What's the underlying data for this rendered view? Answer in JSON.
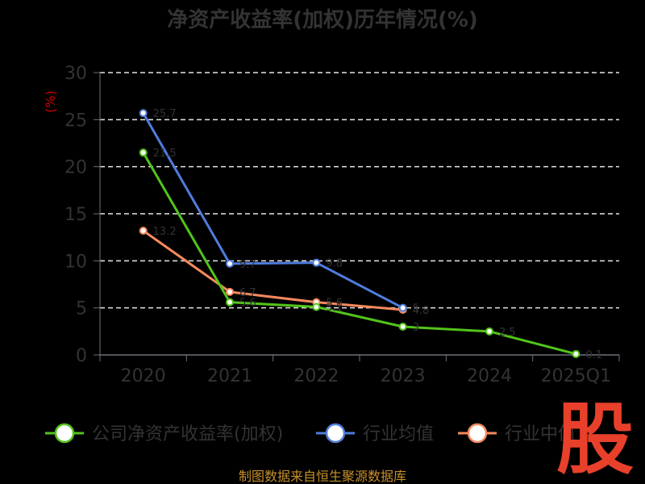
{
  "chart_data": {
    "type": "line",
    "title": "净资产收益率(加权)历年情况(%)",
    "ylabel": "(%)",
    "xlabel": "",
    "categories": [
      "2020",
      "2021",
      "2022",
      "2023",
      "2024",
      "2025Q1"
    ],
    "ylim": [
      0,
      30
    ],
    "yticks": [
      0,
      5,
      10,
      15,
      20,
      25,
      30
    ],
    "grid": "horizontal-dashed",
    "legend_position": "bottom",
    "series": [
      {
        "name": "公司净资产收益率(加权)",
        "color": "#52c41a",
        "values": [
          21.5,
          5.6,
          5.1,
          3.0,
          2.5,
          0.1
        ]
      },
      {
        "name": "行业均值",
        "color": "#4f7ddd",
        "values": [
          25.7,
          9.7,
          9.8,
          5.0,
          null,
          null
        ]
      },
      {
        "name": "行业中值",
        "color": "#f5895d",
        "values": [
          13.2,
          6.7,
          5.6,
          4.8,
          null,
          null
        ]
      }
    ]
  },
  "source": "制图数据来自恒生聚源数据库",
  "logo": {
    "text": "股",
    "color": "#e8402a"
  }
}
